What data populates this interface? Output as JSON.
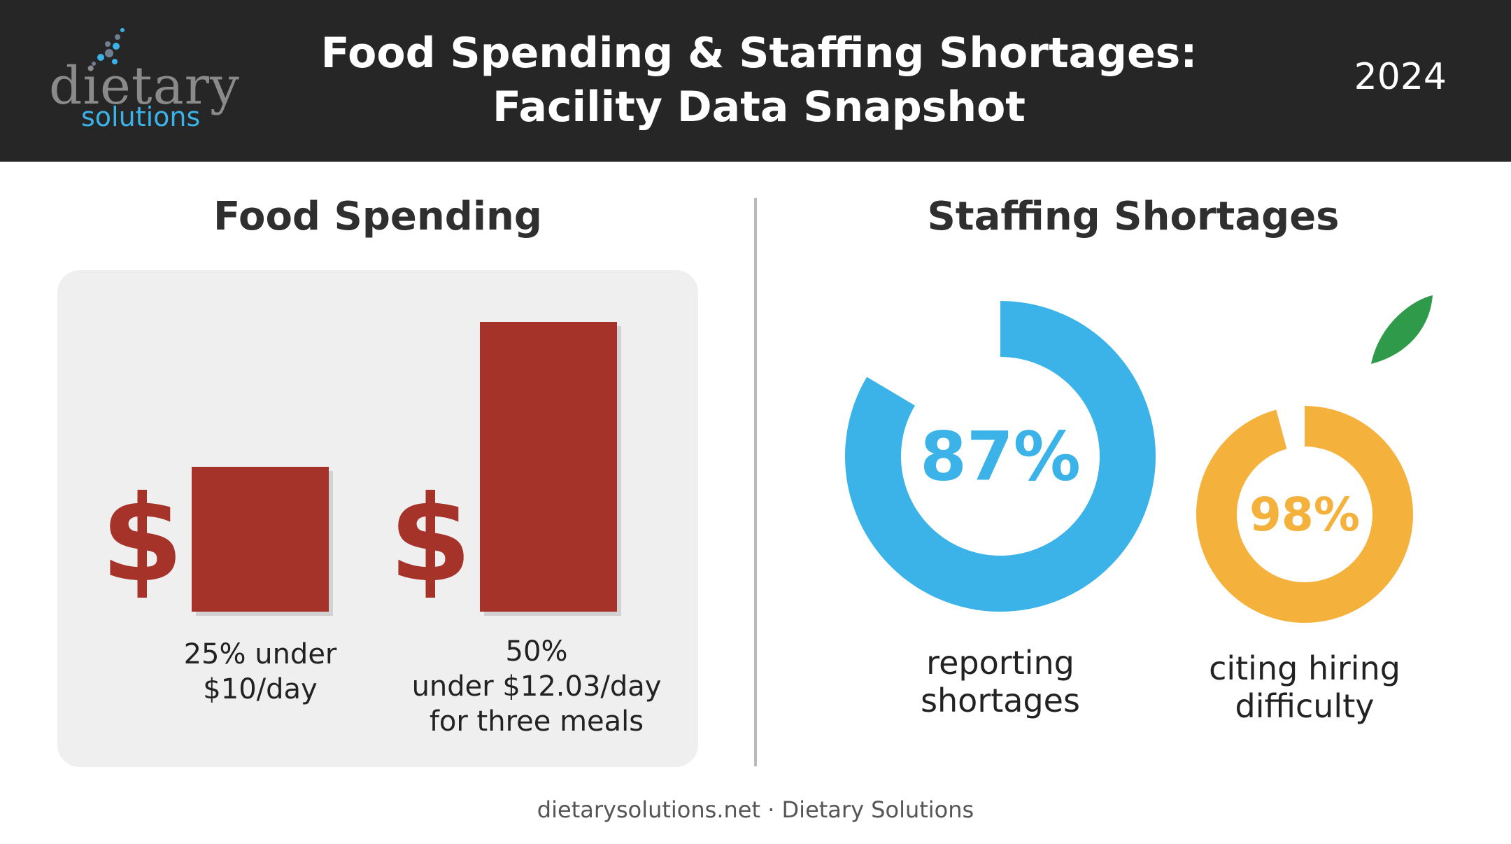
{
  "header": {
    "logo_word": "dietary",
    "logo_sub": "solutions",
    "title_line1": "Food Spending & Staffing Shortages:",
    "title_line2": "Facility Data Snapshot",
    "year": "2024"
  },
  "colors": {
    "header_bg": "#262626",
    "bar": "#a53329",
    "donut_blue": "#3bb3e8",
    "donut_orange": "#f4b23d",
    "leaf": "#2e9a4a"
  },
  "icons": {
    "dollar": "dollar-sign-icon",
    "leaf": "leaf-icon"
  },
  "chart_data": [
    {
      "type": "bar",
      "title": "Food Spending",
      "categories": [
        "25% under $10/day",
        "50% under $12.03/day for three meals"
      ],
      "values": [
        25,
        50
      ],
      "unit": "%",
      "ylim": [
        0,
        50
      ],
      "dollar_symbol": "$",
      "labels": [
        {
          "line1": "25% under",
          "line2": "$10/day",
          "line3": ""
        },
        {
          "line1": "50%",
          "line2": "under $12.03/day",
          "line3": "for three meals"
        }
      ]
    },
    {
      "type": "pie",
      "title": "Staffing Shortages",
      "series": [
        {
          "value": 87,
          "value_label": "87%",
          "line1": "reporting",
          "line2": "shortages",
          "color": "#3bb3e8"
        },
        {
          "value": 98,
          "value_label": "98%",
          "line1": "citing hiring",
          "line2": "difficulty",
          "color": "#f4b23d"
        }
      ]
    }
  ],
  "footer": "dietarysolutions.net · Dietary Solutions"
}
